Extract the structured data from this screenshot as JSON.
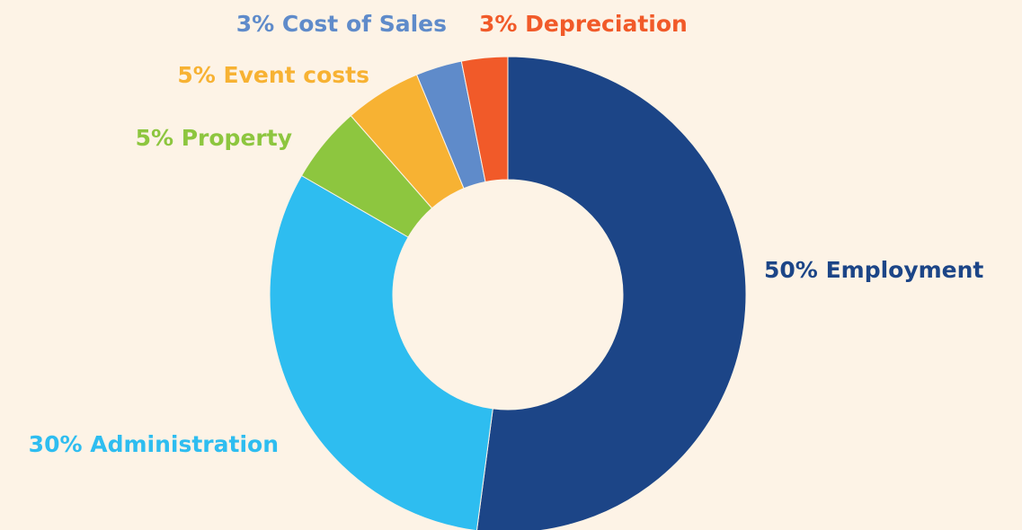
{
  "chart_data": {
    "type": "donut",
    "categories": [
      "Employment",
      "Administration",
      "Property",
      "Event costs",
      "Cost of Sales",
      "Depreciation"
    ],
    "values": [
      50,
      30,
      5,
      5,
      3,
      3
    ],
    "value_labels": [
      "50%",
      "30%",
      "5%",
      "5%",
      "3%",
      "3%"
    ],
    "colors": [
      "#1c4587",
      "#2ebdf0",
      "#8dc63f",
      "#f7b233",
      "#5f8bca",
      "#f15a29"
    ]
  }
}
